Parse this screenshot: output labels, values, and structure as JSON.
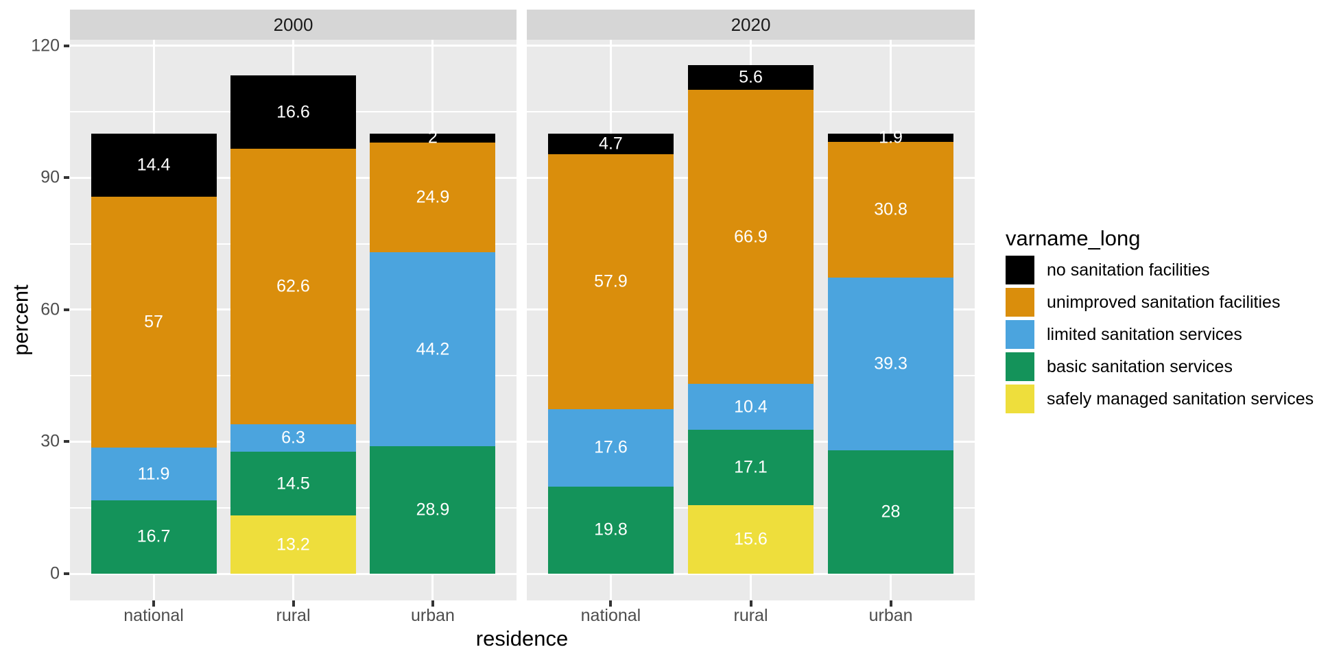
{
  "figure": {
    "background": "#ffffff",
    "panel_background": "#eaeaea",
    "strip_background": "#d6d6d6",
    "gridline_color": "#ffffff",
    "tick_color": "#333333",
    "tick_text_color": "#4d4d4d",
    "title_text_color": "#000000",
    "bar_label_color": "#ffffff"
  },
  "axes": {
    "x_title": "residence",
    "y_title": "percent",
    "y_tick_labels": [
      "0",
      "30",
      "60",
      "90",
      "120"
    ],
    "y_ticks": [
      0,
      30,
      60,
      90,
      120
    ],
    "y_minor_ticks": [
      15,
      45,
      75,
      105
    ],
    "x_categories": [
      "national",
      "rural",
      "urban"
    ]
  },
  "legend": {
    "title": "varname_long",
    "position": "right"
  },
  "chart_data": {
    "type": "bar",
    "stacked": true,
    "xlabel": "residence",
    "ylabel": "percent",
    "ylim": [
      0,
      121.5
    ],
    "grid": true,
    "legend_title": "varname_long",
    "legend_position": "right",
    "categories": [
      "national",
      "rural",
      "urban"
    ],
    "series": [
      {
        "id": "safely",
        "name": "safely managed sanitation services",
        "color": "#eede3c"
      },
      {
        "id": "basic",
        "name": "basic sanitation services",
        "color": "#14935a"
      },
      {
        "id": "limited",
        "name": "limited sanitation services",
        "color": "#4ba4de"
      },
      {
        "id": "unimproved",
        "name": "unimproved sanitation facilities",
        "color": "#da8e0c"
      },
      {
        "id": "none",
        "name": "no sanitation facilities",
        "color": "#000000"
      }
    ],
    "stack_order_bottom_to_top": [
      "safely",
      "basic",
      "limited",
      "unimproved",
      "none"
    ],
    "facets": [
      {
        "label": "2000",
        "bars": [
          {
            "category": "national",
            "segments": [
              {
                "series": "basic",
                "value": 16.7,
                "label": "16.7"
              },
              {
                "series": "limited",
                "value": 11.9,
                "label": "11.9"
              },
              {
                "series": "unimproved",
                "value": 57,
                "label": "57"
              },
              {
                "series": "none",
                "value": 14.4,
                "label": "14.4"
              }
            ]
          },
          {
            "category": "rural",
            "segments": [
              {
                "series": "safely",
                "value": 13.2,
                "label": "13.2"
              },
              {
                "series": "basic",
                "value": 14.5,
                "label": "14.5"
              },
              {
                "series": "limited",
                "value": 6.3,
                "label": "6.3"
              },
              {
                "series": "unimproved",
                "value": 62.6,
                "label": "62.6"
              },
              {
                "series": "none",
                "value": 16.6,
                "label": "16.6"
              }
            ]
          },
          {
            "category": "urban",
            "segments": [
              {
                "series": "basic",
                "value": 28.9,
                "label": "28.9"
              },
              {
                "series": "limited",
                "value": 44.2,
                "label": "44.2"
              },
              {
                "series": "unimproved",
                "value": 24.9,
                "label": "24.9"
              },
              {
                "series": "none",
                "value": 2,
                "label": "2"
              }
            ]
          }
        ]
      },
      {
        "label": "2020",
        "bars": [
          {
            "category": "national",
            "segments": [
              {
                "series": "basic",
                "value": 19.8,
                "label": "19.8"
              },
              {
                "series": "limited",
                "value": 17.6,
                "label": "17.6"
              },
              {
                "series": "unimproved",
                "value": 57.9,
                "label": "57.9"
              },
              {
                "series": "none",
                "value": 4.7,
                "label": "4.7"
              }
            ]
          },
          {
            "category": "rural",
            "segments": [
              {
                "series": "safely",
                "value": 15.6,
                "label": "15.6"
              },
              {
                "series": "basic",
                "value": 17.1,
                "label": "17.1"
              },
              {
                "series": "limited",
                "value": 10.4,
                "label": "10.4"
              },
              {
                "series": "unimproved",
                "value": 66.9,
                "label": "66.9"
              },
              {
                "series": "none",
                "value": 5.6,
                "label": "5.6"
              }
            ]
          },
          {
            "category": "urban",
            "segments": [
              {
                "series": "basic",
                "value": 28,
                "label": "28"
              },
              {
                "series": "limited",
                "value": 39.3,
                "label": "39.3"
              },
              {
                "series": "unimproved",
                "value": 30.8,
                "label": "30.8"
              },
              {
                "series": "none",
                "value": 1.9,
                "label": "1.9"
              }
            ]
          }
        ]
      }
    ]
  }
}
